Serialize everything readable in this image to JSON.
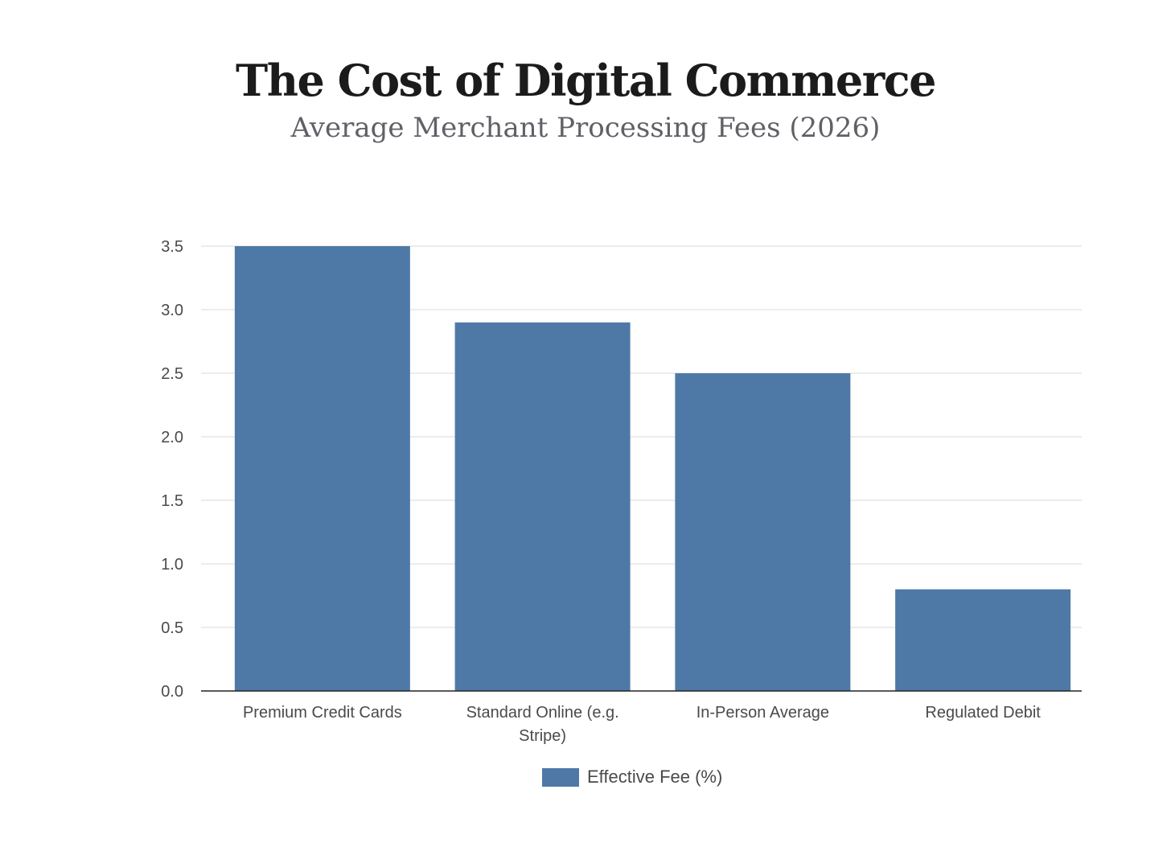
{
  "chart_data": {
    "type": "bar",
    "title": "The Cost of Digital Commerce",
    "subtitle": "Average Merchant Processing Fees (2026)",
    "categories": [
      [
        "Premium Credit Cards"
      ],
      [
        "Standard Online (e.g.",
        "Stripe)"
      ],
      [
        "In-Person Average"
      ],
      [
        "Regulated Debit"
      ]
    ],
    "series": [
      {
        "name": "Effective Fee (%)",
        "values": [
          3.5,
          2.9,
          2.5,
          0.8
        ],
        "color": "#4e79a7"
      }
    ],
    "ylim": [
      0,
      3.5
    ],
    "yticks": [
      "0.0",
      "0.5",
      "1.0",
      "1.5",
      "2.0",
      "2.5",
      "3.0",
      "3.5"
    ],
    "grid": true,
    "legend": "bottom-center"
  }
}
